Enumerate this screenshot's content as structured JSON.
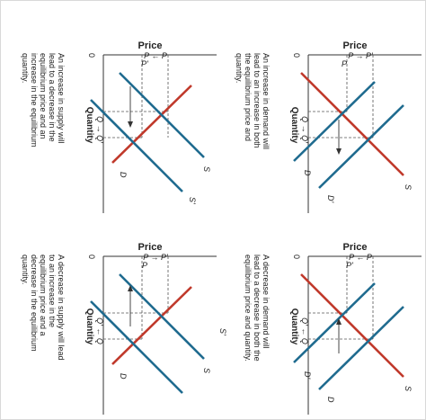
{
  "panels": [
    {
      "id": "increase-supply",
      "price_label": "Price",
      "price_arrow": "P ← P",
      "price_sub": "P'",
      "quantity_label": "Quantity",
      "quantity_arrow": "Q → Q'",
      "origin": "0",
      "curves": {
        "demand": "D",
        "supply": "S",
        "supply_shifted": "S'"
      },
      "caption": "An increase in supply will lead to a decrease in the equilibrium price and an increase in the equilibrium quantity."
    },
    {
      "id": "increase-demand",
      "price_label": "Price",
      "price_arrow": "P → P'",
      "price_sub": "P",
      "quantity_label": "Quantity",
      "quantity_arrow": "Q → Q'",
      "origin": "0",
      "curves": {
        "demand": "D",
        "demand_shifted": "D'",
        "supply": "S"
      },
      "caption": "An increase in demand will lead to an increase in both the equilibrium price and quantity."
    },
    {
      "id": "decrease-supply",
      "price_label": "Price",
      "price_arrow": "P → P'",
      "price_sub": "P",
      "quantity_label": "Quantity",
      "quantity_arrow": "Q' ← Q",
      "origin": "0",
      "curves": {
        "demand": "D",
        "supply": "S",
        "supply_shifted": "S'"
      },
      "caption": "A decrease in supply will lead to an increase in the equilibrium price and a decrease in the equilibrium quantity."
    },
    {
      "id": "decrease-demand",
      "price_label": "Price",
      "price_arrow": "P ← P",
      "price_sub": "P'",
      "quantity_label": "Quantity",
      "quantity_arrow": "Q' ← Q",
      "origin": "0",
      "curves": {
        "demand": "D",
        "demand_shifted": "D'",
        "supply": "S"
      },
      "caption": "A decrease in demand will lead to a decrease in both the equilibrium price and quantity."
    }
  ],
  "colors": {
    "demand": "#c0392b",
    "supply": "#1f6b8f",
    "axis": "#333333"
  }
}
